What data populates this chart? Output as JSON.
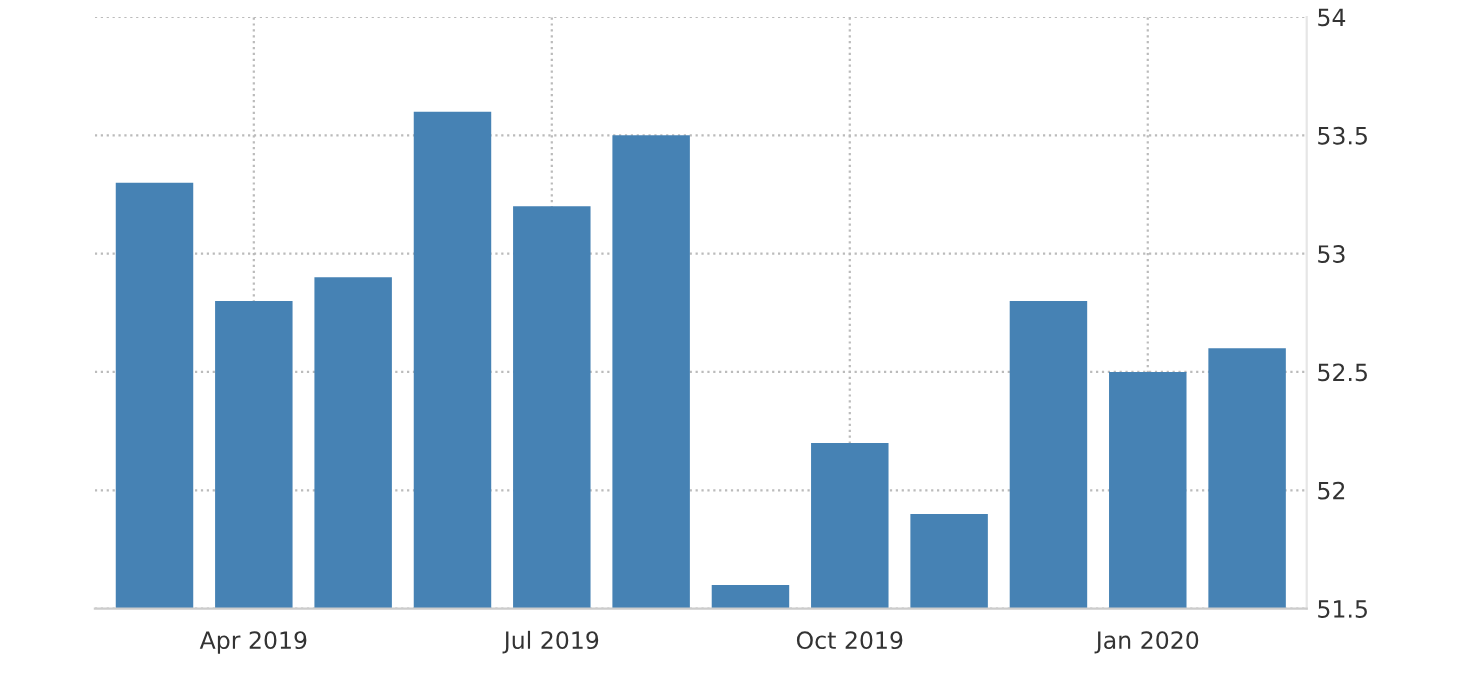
{
  "chart_data": {
    "type": "bar",
    "categories": [
      null,
      "Apr 2019",
      null,
      null,
      "Jul 2019",
      null,
      null,
      "Oct 2019",
      null,
      null,
      "Jan 2020",
      null
    ],
    "values": [
      53.3,
      52.8,
      52.9,
      53.6,
      53.2,
      53.5,
      51.6,
      52.2,
      51.9,
      52.8,
      52.5,
      52.6
    ],
    "color": "#4682b4",
    "ylim": [
      51.5,
      54
    ],
    "yticks": [
      51.5,
      52,
      52.5,
      53,
      53.5,
      54
    ],
    "grid": true
  }
}
